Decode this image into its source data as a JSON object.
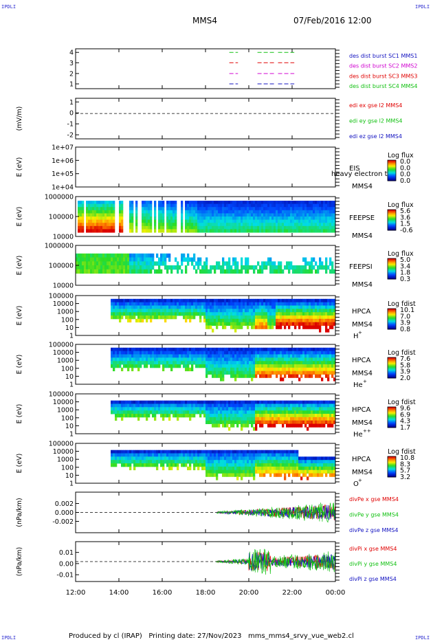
{
  "corner_label": "IPDLI",
  "header": {
    "spacecraft": "MMS4",
    "datetime": "07/Feb/2016 12:00"
  },
  "footer": "Produced by cl (IRAP)   Printing date: 27/Nov/2023   mms_mms4_srvy_vue_web2.cl",
  "colors": {
    "red": "#e00000",
    "green": "#10c010",
    "blue": "#1010c0",
    "magenta": "#d000d0"
  },
  "chart_data": {
    "type": "heatmap",
    "x_ticks": [
      "12:00",
      "14:00",
      "16:00",
      "18:00",
      "20:00",
      "22:00",
      "00:00"
    ],
    "x_range_hours": [
      12,
      24
    ],
    "panels": [
      {
        "id": "burst",
        "type": "line",
        "yticks": [
          "4",
          "3",
          "2",
          "1"
        ],
        "ylim": [
          0.5,
          4.5
        ],
        "legend": [
          {
            "text": "des dist burst SC1 MMS1",
            "color": "#1010c0"
          },
          {
            "text": "des dist burst SC2 MMS2",
            "color": "#d000d0"
          },
          {
            "text": "des dist burst SC3 MMS3",
            "color": "#e00000"
          },
          {
            "text": "des dist burst SC4 MMS4",
            "color": "#10c010"
          }
        ],
        "intervals_hours": [
          [
            19.1,
            19.5
          ],
          [
            20.4,
            21.25
          ],
          [
            21.35,
            22.1
          ]
        ]
      },
      {
        "id": "edi",
        "type": "line",
        "ylabel": "(mV/m)",
        "yticks": [
          "1",
          "0",
          "-1",
          "-2"
        ],
        "ylim": [
          -2.5,
          1.5
        ],
        "legend": [
          {
            "text": "edi ex gse l2 MMS4",
            "color": "#e00000"
          },
          {
            "text": "edi ey gse l2 MMS4",
            "color": "#10c010"
          },
          {
            "text": "edi ez gse l2 MMS4",
            "color": "#1010c0"
          }
        ]
      },
      {
        "id": "eis",
        "type": "heatmap",
        "ylabel": "E (eV)",
        "yticks": [
          "1e+07",
          "1e+06",
          "1e+05",
          "1e+04"
        ],
        "label1": "EIS",
        "label2": "MMS4",
        "overlay_text": "heavy electron to",
        "colorbar": {
          "title": "Log flux",
          "values": [
            "0.0",
            "0.0",
            "0.0",
            "0.0"
          ]
        }
      },
      {
        "id": "feepse",
        "type": "heatmap",
        "ylabel": "E (eV)",
        "yticks": [
          "1000000",
          "100000",
          "10000"
        ],
        "label1": "FEEPSE",
        "label2": "MMS4",
        "colorbar": {
          "title": "Log flux",
          "values": [
            "5.6",
            "3.6",
            "1.5",
            "-0.6"
          ]
        }
      },
      {
        "id": "feepsi",
        "type": "heatmap",
        "ylabel": "E (eV)",
        "yticks": [
          "1000000",
          "100000",
          "10000"
        ],
        "label1": "FEEPSI",
        "label2": "MMS4",
        "colorbar": {
          "title": "Log flux",
          "values": [
            "5.0",
            "3.4",
            "1.8",
            "0.3"
          ]
        }
      },
      {
        "id": "hpca_h",
        "type": "heatmap",
        "ylabel": "E (eV)",
        "yticks": [
          "100000",
          "10000",
          "1000",
          "100",
          "10",
          "1"
        ],
        "label1": "HPCA",
        "label2": "MMS4",
        "species": "H",
        "species_sup": "+",
        "colorbar": {
          "title": "Log fdist",
          "values": [
            "10.1",
            "7.0",
            "3.9",
            "0.8"
          ]
        }
      },
      {
        "id": "hpca_he",
        "type": "heatmap",
        "ylabel": "E (eV)",
        "yticks": [
          "100000",
          "10000",
          "1000",
          "100",
          "10",
          "1"
        ],
        "label1": "HPCA",
        "label2": "MMS4",
        "species": "He",
        "species_sup": "+",
        "colorbar": {
          "title": "Log fdist",
          "values": [
            "7.6",
            "5.8",
            "3.9",
            "2.0"
          ]
        }
      },
      {
        "id": "hpca_he2",
        "type": "heatmap",
        "ylabel": "E (eV)",
        "yticks": [
          "100000",
          "10000",
          "1000",
          "100",
          "10",
          "1"
        ],
        "label1": "HPCA",
        "label2": "MMS4",
        "species": "He",
        "species_sup": "++",
        "colorbar": {
          "title": "Log fdist",
          "values": [
            "9.6",
            "6.9",
            "4.3",
            "1.7"
          ]
        }
      },
      {
        "id": "hpca_o",
        "type": "heatmap",
        "ylabel": "E (eV)",
        "yticks": [
          "100000",
          "10000",
          "1000",
          "100",
          "10",
          "1"
        ],
        "label1": "HPCA",
        "label2": "MMS4",
        "species": "O",
        "species_sup": "+",
        "colorbar": {
          "title": "Log fdist",
          "values": [
            "10.8",
            "8.3",
            "5.7",
            "3.2"
          ]
        }
      },
      {
        "id": "divpe",
        "type": "line",
        "ylabel": "(nPa/km)",
        "yticks": [
          "0.002",
          "0.000",
          "-0.002"
        ],
        "ylim": [
          -0.0035,
          0.0035
        ],
        "legend": [
          {
            "text": "divPe x gse MMS4",
            "color": "#e00000"
          },
          {
            "text": "divPe y gse MMS4",
            "color": "#10c010"
          },
          {
            "text": "divPe z gse MMS4",
            "color": "#1010c0"
          }
        ]
      },
      {
        "id": "divpi",
        "type": "line",
        "ylabel": "(nPa/km)",
        "yticks": [
          "0.01",
          "0.00",
          "-0.01"
        ],
        "ylim": [
          -0.016,
          0.016
        ],
        "legend": [
          {
            "text": "divPi x gse MMS4",
            "color": "#e00000"
          },
          {
            "text": "divPi y gse MMS4",
            "color": "#10c010"
          },
          {
            "text": "divPi z gse MMS4",
            "color": "#1010c0"
          }
        ]
      }
    ]
  }
}
